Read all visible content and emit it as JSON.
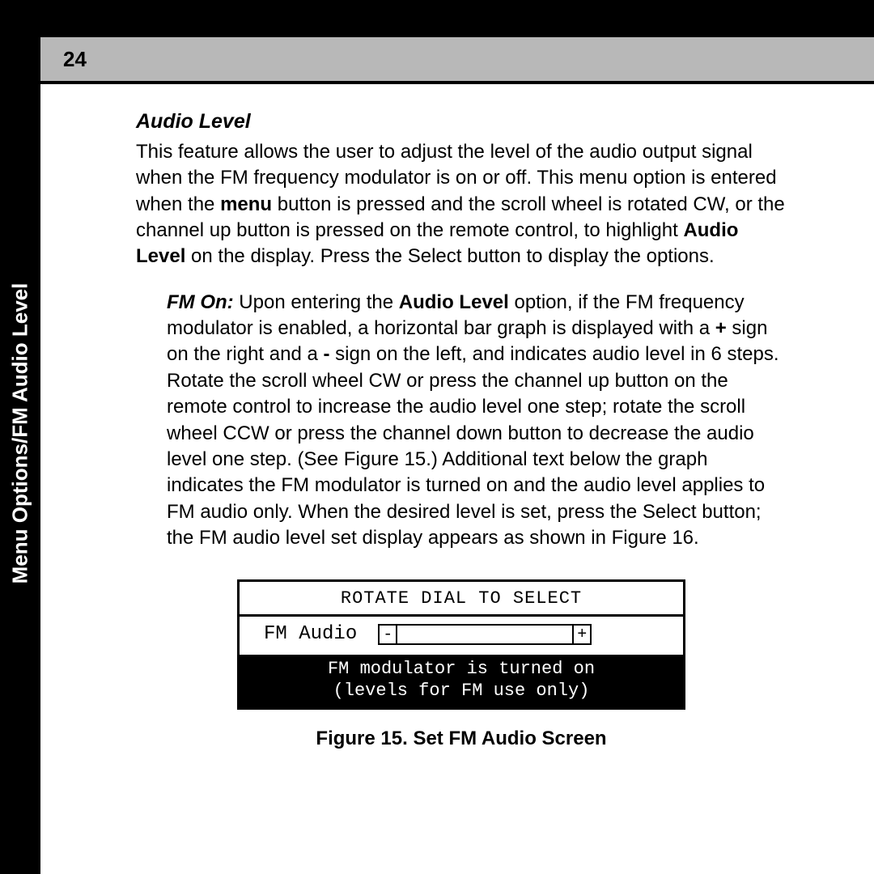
{
  "sidebar_label": "Menu Options/FM Audio Level",
  "page_number": "24",
  "section_title": "Audio Level",
  "para1_pre": "This feature allows the user to adjust the level of the audio output signal when the FM frequency modulator is on or off. This menu option is entered when the ",
  "para1_bold1": "menu",
  "para1_mid": " button is pressed and the scroll wheel is rotated CW, or the channel up button is pressed on the remote control, to highlight  ",
  "para1_bold2": "Audio Level",
  "para1_post": " on the display. Press the Select button to display the options.",
  "para2_lead_bold_italic": "FM On:",
  "para2_pre": " Upon entering the ",
  "para2_bold1": "Audio Level",
  "para2_mid1": " option, if the FM frequency modulator is enabled, a horizontal bar graph is displayed with a ",
  "para2_bold_plus": "+",
  "para2_mid2": " sign on the right and a ",
  "para2_bold_minus": "-",
  "para2_post": " sign on the left, and indicates audio level in 6 steps. Rotate the scroll wheel CW or press the channel up button on the remote control to increase the audio level one step; rotate the scroll wheel CCW or press the channel down button to decrease the audio level one step. (See Figure 15.) Additional text below the graph indicates the FM modulator is turned on and the audio level applies to FM audio only.  When the desired level is set, press the Select button; the FM audio level set display appears as shown in Figure 16.",
  "screen": {
    "top": "ROTATE DIAL TO SELECT",
    "label": "FM Audio",
    "minus": "-",
    "plus": "+",
    "bottom1": "FM modulator is turned on",
    "bottom2": "(levels for FM use only)"
  },
  "caption": "Figure 15. Set FM Audio Screen"
}
